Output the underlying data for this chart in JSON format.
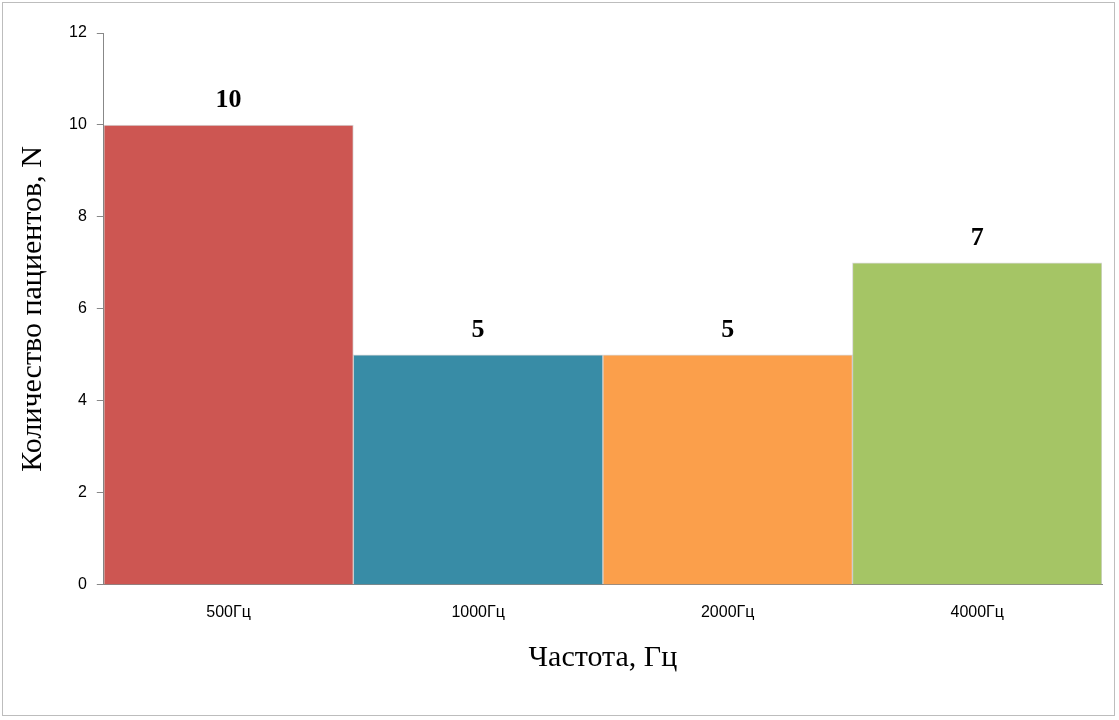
{
  "chart_data": {
    "type": "bar",
    "categories": [
      "500Гц",
      "1000Гц",
      "2000Гц",
      "4000Гц"
    ],
    "values": [
      10,
      5,
      5,
      7
    ],
    "colors": [
      "#cd5652",
      "#388ca6",
      "#fb9f4b",
      "#a5c565"
    ],
    "xlabel": "Частота, Гц",
    "ylabel": "Количество пациентов, N",
    "ylim": [
      0,
      12
    ],
    "yticks": [
      0,
      2,
      4,
      6,
      8,
      10,
      12
    ],
    "grid": false,
    "legend": false,
    "data_labels": true
  }
}
